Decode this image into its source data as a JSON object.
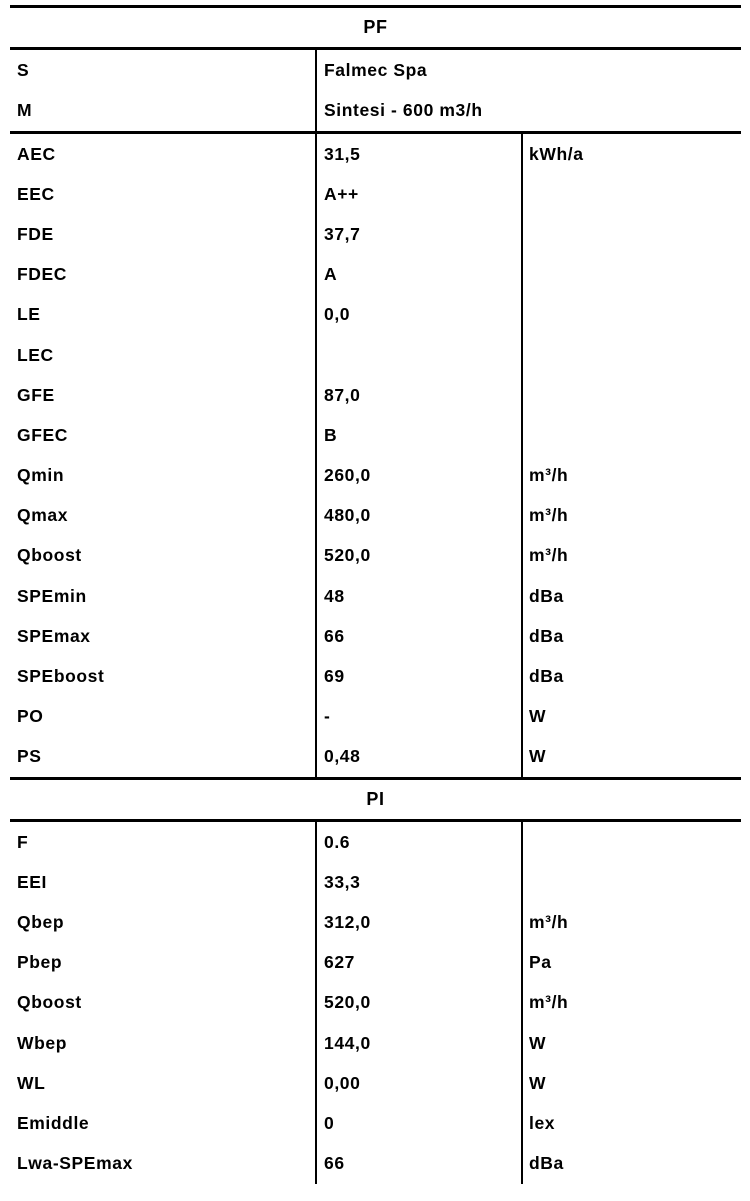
{
  "document": {
    "background_color": "#ffffff",
    "text_color": "#000000",
    "rule_color": "#000000"
  },
  "sections": [
    {
      "id": "pf",
      "title": "PF",
      "product_rows": [
        {
          "label": "S",
          "value": "Falmec Spa"
        },
        {
          "label": "M",
          "value": "Sintesi - 600 m3/h"
        }
      ],
      "rows": [
        {
          "label": "AEC",
          "value": "31,5",
          "unit": "kWh/a"
        },
        {
          "label": "EEC",
          "value": "A++",
          "unit": ""
        },
        {
          "label": "FDE",
          "value": "37,7",
          "unit": ""
        },
        {
          "label": "FDEC",
          "value": "A",
          "unit": ""
        },
        {
          "label": "LE",
          "value": "0,0",
          "unit": ""
        },
        {
          "label": "LEC",
          "value": "",
          "unit": ""
        },
        {
          "label": "GFE",
          "value": "87,0",
          "unit": ""
        },
        {
          "label": "GFEC",
          "value": "B",
          "unit": ""
        },
        {
          "label": "Qmin",
          "value": "260,0",
          "unit": "m³/h"
        },
        {
          "label": "Qmax",
          "value": "480,0",
          "unit": "m³/h"
        },
        {
          "label": "Qboost",
          "value": "520,0",
          "unit": "m³/h"
        },
        {
          "label": "SPEmin",
          "value": "48",
          "unit": "dBa"
        },
        {
          "label": "SPEmax",
          "value": "66",
          "unit": "dBa"
        },
        {
          "label": "SPEboost",
          "value": "69",
          "unit": "dBa"
        },
        {
          "label": "PO",
          "value": "-",
          "unit": "W"
        },
        {
          "label": "PS",
          "value": "0,48",
          "unit": "W"
        }
      ]
    },
    {
      "id": "pi",
      "title": "PI",
      "product_rows": [],
      "rows": [
        {
          "label": "F",
          "value": "0.6",
          "unit": ""
        },
        {
          "label": "EEI",
          "value": "33,3",
          "unit": ""
        },
        {
          "label": "Qbep",
          "value": "312,0",
          "unit": "m³/h"
        },
        {
          "label": "Pbep",
          "value": "627",
          "unit": "Pa"
        },
        {
          "label": "Qboost",
          "value": "520,0",
          "unit": "m³/h"
        },
        {
          "label": "Wbep",
          "value": "144,0",
          "unit": "W"
        },
        {
          "label": "WL",
          "value": "0,00",
          "unit": "W"
        },
        {
          "label": "Emiddle",
          "value": "0",
          "unit": "lex"
        },
        {
          "label": "Lwa-SPEmax",
          "value": "66",
          "unit": "dBa"
        }
      ]
    }
  ]
}
